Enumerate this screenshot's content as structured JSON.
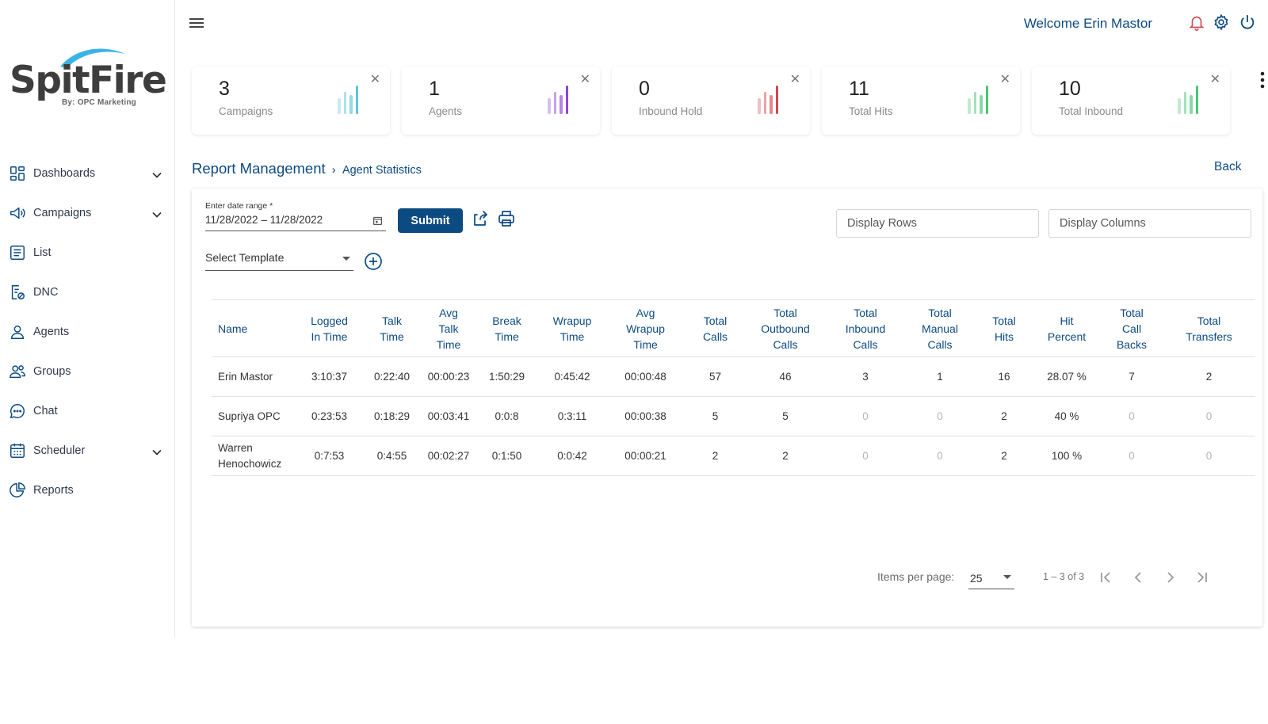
{
  "brand": {
    "name": "SpitFire",
    "tagline": "By: OPC Marketing"
  },
  "sidebar": {
    "items": [
      {
        "label": "Dashboards",
        "icon": "dashboard-icon",
        "expandable": true
      },
      {
        "label": "Campaigns",
        "icon": "megaphone-icon",
        "expandable": true
      },
      {
        "label": "List",
        "icon": "list-icon",
        "expandable": false
      },
      {
        "label": "DNC",
        "icon": "dnc-icon",
        "expandable": false
      },
      {
        "label": "Agents",
        "icon": "person-icon",
        "expandable": false
      },
      {
        "label": "Groups",
        "icon": "group-icon",
        "expandable": false
      },
      {
        "label": "Chat",
        "icon": "chat-icon",
        "expandable": false
      },
      {
        "label": "Scheduler",
        "icon": "calendar-icon",
        "expandable": true
      },
      {
        "label": "Reports",
        "icon": "pie-chart-icon",
        "expandable": false
      }
    ]
  },
  "header": {
    "welcome": "Welcome Erin Mastor"
  },
  "stats": [
    {
      "value": "3",
      "label": "Campaigns",
      "color": "#5fc3d6"
    },
    {
      "value": "1",
      "label": "Agents",
      "color": "#8e44d8"
    },
    {
      "value": "0",
      "label": "Inbound Hold",
      "color": "#d64550"
    },
    {
      "value": "11",
      "label": "Total Hits",
      "color": "#4cc474"
    },
    {
      "value": "10",
      "label": "Total Inbound",
      "color": "#4cc474"
    }
  ],
  "breadcrumb": {
    "root": "Report Management",
    "separator": "›",
    "current": "Agent Statistics"
  },
  "back_label": "Back",
  "filters": {
    "date_label": "Enter date range *",
    "date_value": "11/28/2022 – 11/28/2022",
    "submit_label": "Submit",
    "display_rows": "Display Rows",
    "display_columns": "Display Columns",
    "template_placeholder": "Select Template"
  },
  "table": {
    "headers": [
      [
        "Name"
      ],
      [
        "Logged",
        "In Time"
      ],
      [
        "Talk",
        "Time"
      ],
      [
        "Avg",
        "Talk",
        "Time"
      ],
      [
        "Break",
        "Time"
      ],
      [
        "Wrapup",
        "Time"
      ],
      [
        "Avg",
        "Wrapup",
        "Time"
      ],
      [
        "Total",
        "Calls"
      ],
      [
        "Total",
        "Outbound",
        "Calls"
      ],
      [
        "Total",
        "Inbound",
        "Calls"
      ],
      [
        "Total",
        "Manual",
        "Calls"
      ],
      [
        "Total",
        "Hits"
      ],
      [
        "Hit",
        "Percent"
      ],
      [
        "Total",
        "Call",
        "Backs"
      ],
      [
        "Total",
        "Transfers"
      ]
    ],
    "rows": [
      [
        "Erin Mastor",
        "3:10:37",
        "0:22:40",
        "00:00:23",
        "1:50:29",
        "0:45:42",
        "00:00:48",
        "57",
        "46",
        "3",
        "1",
        "16",
        "28.07 %",
        "7",
        "2"
      ],
      [
        "Supriya OPC",
        "0:23:53",
        "0:18:29",
        "00:03:41",
        "0:0:8",
        "0:3:11",
        "00:00:38",
        "5",
        "5",
        "0",
        "0",
        "2",
        "40 %",
        "0",
        "0"
      ],
      [
        "Warren Henochowicz",
        "0:7:53",
        "0:4:55",
        "00:02:27",
        "0:1:50",
        "0:0:42",
        "00:00:21",
        "2",
        "2",
        "0",
        "0",
        "2",
        "100 %",
        "0",
        "0"
      ]
    ]
  },
  "paginator": {
    "items_label": "Items per page:",
    "page_size": "25",
    "range": "1 – 3 of 3"
  },
  "colors": {
    "primary": "#0c4a82",
    "logo_arc": "#3ab3e6"
  }
}
